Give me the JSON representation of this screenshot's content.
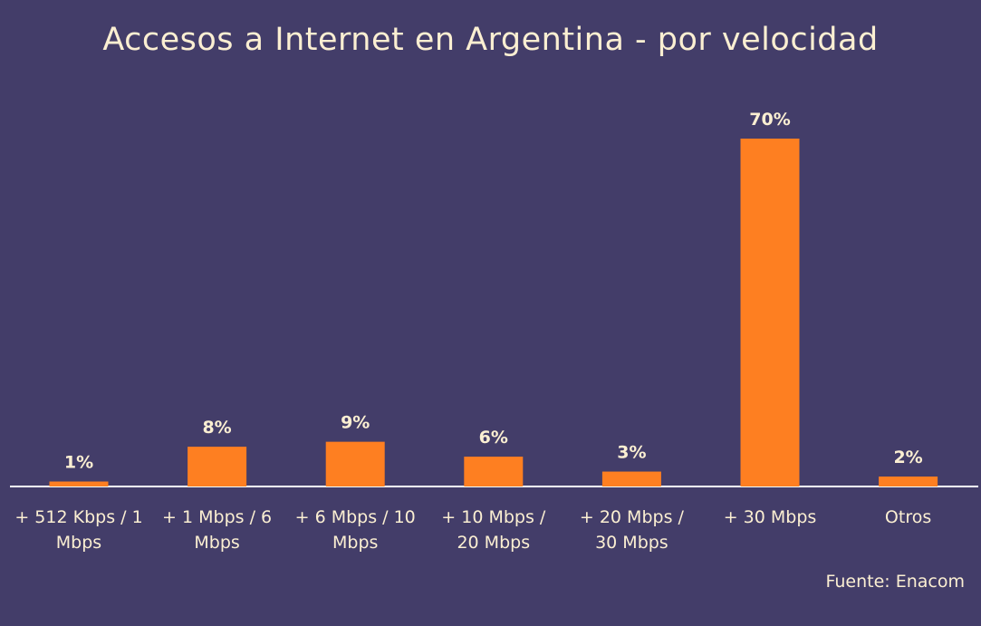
{
  "chart_data": {
    "type": "bar",
    "title": "Accesos a Internet en Argentina - por velocidad",
    "categories": [
      [
        "+ 512 Kbps / 1",
        "Mbps"
      ],
      [
        "+ 1 Mbps / 6",
        "Mbps"
      ],
      [
        "+ 6 Mbps / 10",
        "Mbps"
      ],
      [
        "+ 10 Mbps /",
        "20 Mbps"
      ],
      [
        "+ 20 Mbps /",
        "30 Mbps"
      ],
      [
        "+ 30 Mbps"
      ],
      [
        "Otros"
      ]
    ],
    "values": [
      1,
      8,
      9,
      6,
      3,
      70,
      2
    ],
    "value_labels": [
      "1%",
      "8%",
      "9%",
      "6%",
      "3%",
      "70%",
      "2%"
    ],
    "ylim": [
      0,
      70
    ],
    "grid": false,
    "legend": "none",
    "colors": {
      "bar": "#fe7f21",
      "background": "#433d69",
      "text": "#fbefd2",
      "axis": "#ffffff"
    }
  },
  "source": "Fuente: Enacom"
}
